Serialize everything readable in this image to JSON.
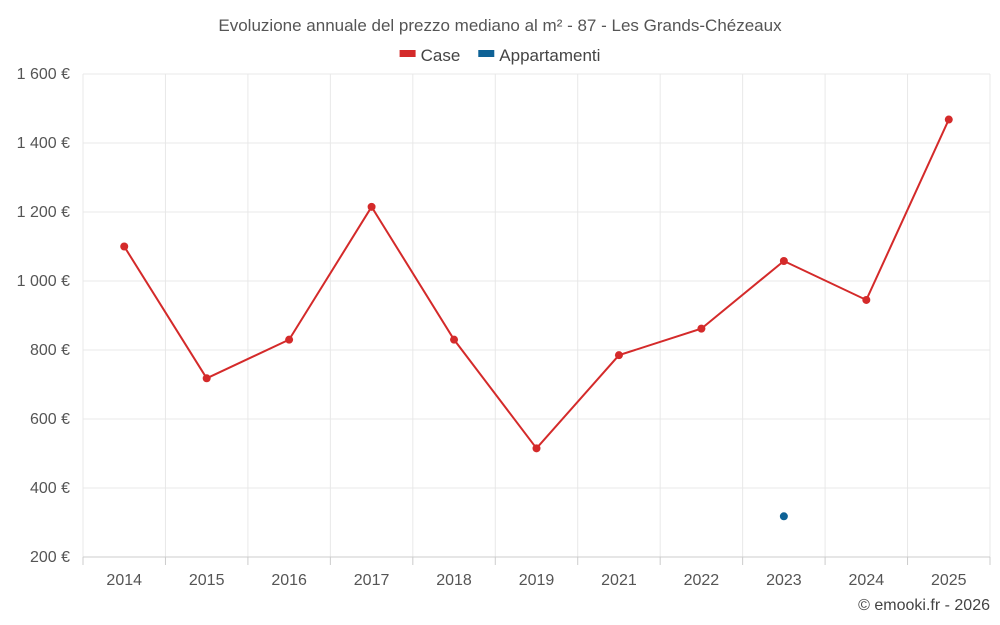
{
  "chart_data": {
    "type": "line",
    "title": "Evoluzione annuale del prezzo mediano al m² - 87 - Les Grands-Chézeaux",
    "categories": [
      "2014",
      "2015",
      "2016",
      "2017",
      "2018",
      "2019",
      "2021",
      "2022",
      "2023",
      "2024",
      "2025"
    ],
    "y_ticks": [
      200,
      400,
      600,
      800,
      1000,
      1200,
      1400,
      1600
    ],
    "y_tick_labels": [
      "200 €",
      "400 €",
      "600 €",
      "800 €",
      "1 000 €",
      "1 200 €",
      "1 400 €",
      "1 600 €"
    ],
    "ylim": [
      200,
      1600
    ],
    "grid": true,
    "legend_position": "top-center",
    "series": [
      {
        "name": "Case",
        "color": "#d42a2a",
        "values": [
          1100,
          718,
          830,
          1215,
          830,
          515,
          785,
          862,
          1058,
          945,
          1468
        ]
      },
      {
        "name": "Appartamenti",
        "color": "#0e6296",
        "values": [
          null,
          null,
          null,
          null,
          null,
          null,
          null,
          null,
          318,
          null,
          null
        ]
      }
    ],
    "credit": "© emooki.fr - 2026"
  }
}
